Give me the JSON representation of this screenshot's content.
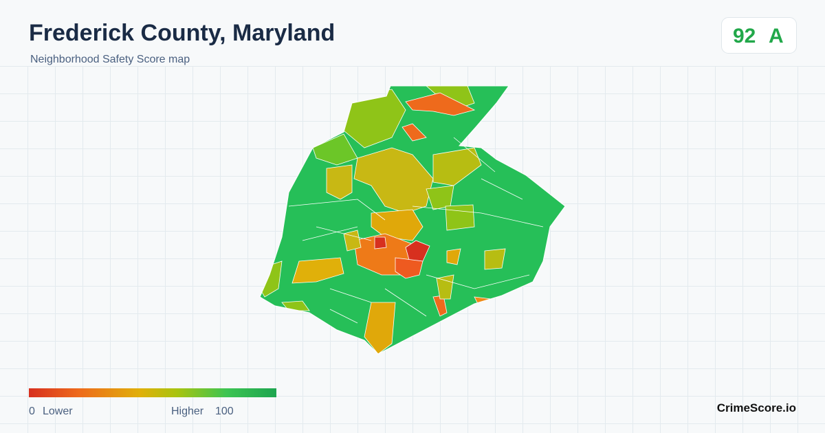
{
  "header": {
    "title": "Frederick County, Maryland",
    "subtitle": "Neighborhood Safety Score map"
  },
  "score": {
    "value": 92,
    "grade": "A"
  },
  "legend": {
    "min": 0,
    "min_label": "Lower",
    "max_label": "Higher",
    "max": 100
  },
  "footer": {
    "brand": "CrimeScore.io"
  }
}
